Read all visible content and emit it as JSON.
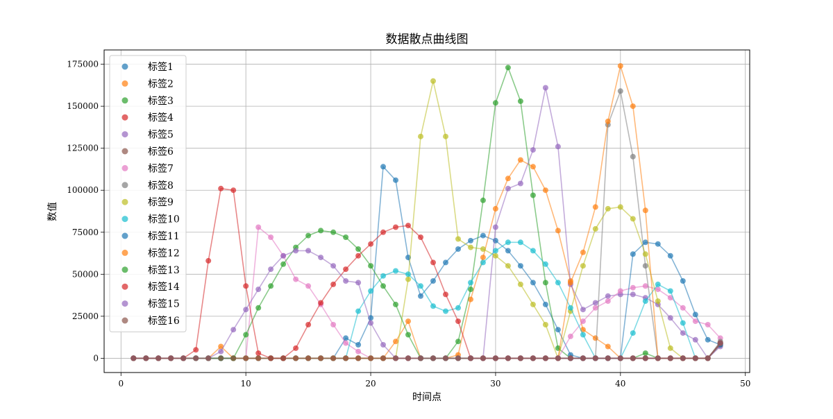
{
  "chart_data": {
    "type": "line",
    "title": "数据散点曲线图",
    "xlabel": "时间点",
    "ylabel": "数值",
    "xlim": [
      -1.35,
      50.35
    ],
    "ylim": [
      -8500,
      183500
    ],
    "xticks": [
      0,
      10,
      20,
      30,
      40,
      50
    ],
    "yticks": [
      0,
      25000,
      50000,
      75000,
      100000,
      125000,
      150000,
      175000
    ],
    "ytick_labels": [
      "0",
      "25000",
      "50000",
      "75000",
      "100000",
      "125000",
      "150000",
      "175000"
    ],
    "grid": true,
    "legend_position": "upper-left",
    "x": [
      1,
      2,
      3,
      4,
      5,
      6,
      7,
      8,
      9,
      10,
      11,
      12,
      13,
      14,
      15,
      16,
      17,
      18,
      19,
      20,
      21,
      22,
      23,
      24,
      25,
      26,
      27,
      28,
      29,
      30,
      31,
      32,
      33,
      34,
      35,
      36,
      37,
      38,
      39,
      40,
      41,
      42,
      43,
      44,
      45,
      46,
      47,
      48
    ],
    "series": [
      {
        "name": "标签1",
        "color": "#1f77b4",
        "values": [
          0,
          0,
          0,
          0,
          0,
          0,
          0,
          0,
          0,
          0,
          0,
          0,
          0,
          0,
          0,
          0,
          0,
          12000,
          8000,
          24000,
          114000,
          106000,
          60000,
          37000,
          46000,
          57000,
          65000,
          70000,
          73000,
          70000,
          64000,
          55000,
          45000,
          32000,
          17000,
          2000,
          0,
          0,
          0,
          0,
          0,
          0,
          0,
          0,
          0,
          0,
          0,
          8000
        ]
      },
      {
        "name": "标签2",
        "color": "#ff7f0e",
        "values": [
          0,
          0,
          0,
          0,
          0,
          0,
          0,
          0,
          0,
          0,
          0,
          0,
          0,
          0,
          0,
          0,
          0,
          0,
          0,
          0,
          0,
          10000,
          22000,
          0,
          0,
          0,
          2000,
          35000,
          60000,
          89000,
          107000,
          118000,
          114000,
          100000,
          76000,
          46000,
          17000,
          12000,
          7000,
          0,
          0,
          0,
          0,
          0,
          0,
          0,
          0,
          9000
        ]
      },
      {
        "name": "标签3",
        "color": "#2ca02c",
        "values": [
          0,
          0,
          0,
          0,
          0,
          0,
          0,
          0,
          0,
          0,
          0,
          0,
          0,
          0,
          0,
          0,
          0,
          0,
          0,
          0,
          0,
          0,
          0,
          0,
          0,
          0,
          10000,
          41000,
          94000,
          152000,
          173000,
          153000,
          97000,
          45000,
          6000,
          0,
          0,
          0,
          0,
          0,
          0,
          3000,
          0,
          0,
          0,
          0,
          0,
          9000
        ]
      },
      {
        "name": "标签4",
        "color": "#d62728",
        "values": [
          0,
          0,
          0,
          0,
          0,
          0,
          0,
          0,
          0,
          0,
          0,
          0,
          0,
          0,
          0,
          0,
          0,
          0,
          0,
          0,
          0,
          0,
          0,
          0,
          0,
          0,
          0,
          0,
          0,
          0,
          0,
          0,
          0,
          0,
          0,
          0,
          0,
          0,
          0,
          0,
          0,
          0,
          0,
          0,
          0,
          0,
          0,
          9000
        ]
      },
      {
        "name": "标签5",
        "color": "#9467bd",
        "values": [
          0,
          0,
          0,
          0,
          0,
          0,
          0,
          0,
          0,
          0,
          0,
          0,
          0,
          0,
          0,
          0,
          0,
          0,
          0,
          0,
          0,
          0,
          0,
          0,
          0,
          0,
          0,
          0,
          0,
          78000,
          101000,
          104000,
          124000,
          161000,
          126000,
          44000,
          29000,
          33000,
          37000,
          38000,
          38000,
          36000,
          32000,
          24000,
          15000,
          11000,
          0,
          7000
        ]
      },
      {
        "name": "标签6",
        "color": "#8c564b",
        "values": [
          0,
          0,
          0,
          0,
          0,
          0,
          0,
          0,
          0,
          0,
          0,
          0,
          0,
          0,
          0,
          0,
          0,
          0,
          0,
          0,
          0,
          0,
          0,
          0,
          0,
          0,
          0,
          0,
          0,
          0,
          0,
          0,
          0,
          0,
          0,
          0,
          0,
          0,
          0,
          0,
          0,
          0,
          0,
          0,
          0,
          0,
          0,
          8000
        ]
      },
      {
        "name": "标签7",
        "color": "#e377c2",
        "values": [
          0,
          0,
          0,
          0,
          0,
          0,
          0,
          0,
          0,
          0,
          78000,
          72000,
          61000,
          47000,
          43000,
          32000,
          20000,
          9000,
          4000,
          0,
          0,
          0,
          0,
          0,
          0,
          0,
          0,
          0,
          0,
          0,
          0,
          0,
          0,
          0,
          0,
          13000,
          22000,
          30000,
          34000,
          40000,
          42000,
          43000,
          41000,
          36000,
          30000,
          22000,
          20000,
          12000
        ]
      },
      {
        "name": "标签8",
        "color": "#7f7f7f",
        "values": [
          0,
          0,
          0,
          0,
          0,
          0,
          0,
          0,
          0,
          0,
          0,
          0,
          0,
          0,
          0,
          0,
          0,
          0,
          0,
          0,
          0,
          0,
          0,
          0,
          0,
          0,
          0,
          0,
          0,
          0,
          0,
          0,
          0,
          0,
          0,
          0,
          0,
          0,
          139000,
          159000,
          120000,
          55000,
          0,
          0,
          0,
          0,
          0,
          10000
        ]
      },
      {
        "name": "标签9",
        "color": "#bcbd22",
        "values": [
          0,
          0,
          0,
          0,
          0,
          0,
          0,
          0,
          0,
          0,
          0,
          0,
          0,
          0,
          0,
          0,
          0,
          0,
          0,
          0,
          0,
          0,
          47000,
          132000,
          165000,
          132000,
          71000,
          66000,
          65000,
          61000,
          55000,
          44000,
          32000,
          20000,
          0,
          28000,
          55000,
          77000,
          89000,
          90000,
          83000,
          62000,
          34000,
          6000,
          0,
          0,
          0,
          9000
        ]
      },
      {
        "name": "标签10",
        "color": "#17becf",
        "values": [
          0,
          0,
          0,
          0,
          0,
          0,
          0,
          0,
          0,
          0,
          0,
          0,
          0,
          0,
          0,
          0,
          0,
          0,
          28000,
          40000,
          49000,
          52000,
          50000,
          43000,
          31000,
          28000,
          30000,
          45000,
          57000,
          64000,
          69000,
          69000,
          64000,
          56000,
          45000,
          30000,
          14000,
          0,
          0,
          0,
          15000,
          34000,
          44000,
          40000,
          21000,
          0,
          0,
          9000
        ]
      },
      {
        "name": "标签11",
        "color": "#1f77b4",
        "values": [
          0,
          0,
          0,
          0,
          0,
          0,
          0,
          0,
          0,
          0,
          0,
          0,
          0,
          0,
          0,
          0,
          0,
          0,
          0,
          0,
          0,
          0,
          0,
          0,
          0,
          0,
          0,
          0,
          0,
          0,
          0,
          0,
          0,
          0,
          0,
          0,
          0,
          0,
          0,
          0,
          62000,
          69000,
          68000,
          61000,
          46000,
          26000,
          11000,
          8000
        ]
      },
      {
        "name": "标签12",
        "color": "#ff7f0e",
        "values": [
          0,
          0,
          0,
          0,
          0,
          0,
          0,
          7000,
          0,
          0,
          0,
          0,
          0,
          0,
          0,
          0,
          0,
          0,
          0,
          0,
          0,
          0,
          0,
          0,
          0,
          0,
          0,
          0,
          0,
          0,
          0,
          0,
          0,
          0,
          0,
          45000,
          63000,
          90000,
          141000,
          174000,
          150000,
          88000,
          0,
          0,
          0,
          0,
          0,
          9000
        ]
      },
      {
        "name": "标签13",
        "color": "#2ca02c",
        "values": [
          0,
          0,
          0,
          0,
          0,
          0,
          0,
          0,
          0,
          14000,
          30000,
          43000,
          56000,
          66000,
          73000,
          76000,
          75000,
          72000,
          65000,
          55000,
          43000,
          32000,
          14000,
          0,
          0,
          0,
          0,
          0,
          0,
          0,
          0,
          0,
          0,
          0,
          0,
          0,
          0,
          0,
          0,
          0,
          0,
          0,
          0,
          0,
          0,
          0,
          0,
          9000
        ]
      },
      {
        "name": "标签14",
        "color": "#d62728",
        "values": [
          0,
          0,
          0,
          0,
          0,
          5000,
          58000,
          101000,
          100000,
          43000,
          3000,
          0,
          0,
          6000,
          20000,
          33000,
          44000,
          53000,
          61000,
          68000,
          75000,
          78000,
          79000,
          72000,
          57000,
          38000,
          22000,
          0,
          0,
          0,
          0,
          0,
          0,
          0,
          0,
          0,
          0,
          0,
          0,
          0,
          0,
          0,
          0,
          0,
          0,
          0,
          0,
          9000
        ]
      },
      {
        "name": "标签15",
        "color": "#9467bd",
        "values": [
          0,
          0,
          0,
          0,
          0,
          0,
          0,
          4000,
          17000,
          29000,
          41000,
          53000,
          61000,
          64000,
          64000,
          60000,
          55000,
          46000,
          45000,
          21000,
          8000,
          0,
          0,
          0,
          0,
          0,
          0,
          0,
          0,
          0,
          0,
          0,
          0,
          0,
          0,
          0,
          0,
          0,
          0,
          0,
          0,
          0,
          0,
          0,
          0,
          0,
          0,
          9000
        ]
      },
      {
        "name": "标签16",
        "color": "#8c564b",
        "values": [
          0,
          0,
          0,
          0,
          0,
          0,
          0,
          0,
          0,
          0,
          0,
          0,
          0,
          0,
          0,
          0,
          0,
          0,
          0,
          0,
          0,
          0,
          0,
          0,
          0,
          0,
          0,
          0,
          0,
          0,
          0,
          0,
          0,
          0,
          0,
          0,
          0,
          0,
          0,
          0,
          0,
          0,
          0,
          0,
          0,
          0,
          0,
          9000
        ]
      }
    ]
  }
}
